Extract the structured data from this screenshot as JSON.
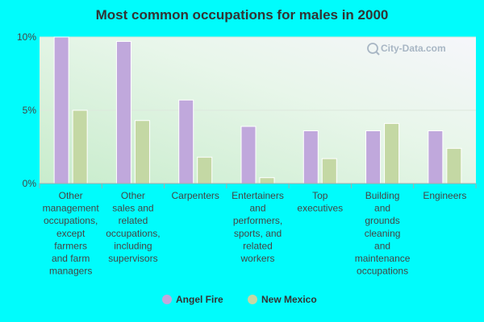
{
  "watermark": "City-Data.com",
  "colors": {
    "background": "#00fcfc",
    "series_a": "#c0a8dc",
    "series_b": "#c4d8a4",
    "grid": "#dde8dd",
    "axis": "#aaaaaa"
  },
  "chart_data": {
    "type": "bar",
    "title": "Most common occupations for males in 2000",
    "xlabel": "",
    "ylabel": "",
    "ylim": [
      0,
      10
    ],
    "yticks": [
      0,
      5,
      10
    ],
    "ytick_labels": [
      "0%",
      "5%",
      "10%"
    ],
    "categories": [
      [
        "Other",
        "management",
        "occupations,",
        "except",
        "farmers",
        "and farm",
        "managers"
      ],
      [
        "Other",
        "sales and",
        "related",
        "occupations,",
        "including",
        "supervisors"
      ],
      [
        "Carpenters"
      ],
      [
        "Entertainers",
        "and",
        "performers,",
        "sports, and",
        "related",
        "workers"
      ],
      [
        "Top",
        "executives"
      ],
      [
        "Building",
        "and",
        "grounds",
        "cleaning",
        "and",
        "maintenance",
        "occupations"
      ],
      [
        "Engineers"
      ]
    ],
    "series": [
      {
        "name": "Angel Fire",
        "values": [
          10.0,
          9.7,
          5.7,
          3.9,
          3.6,
          3.6,
          3.6
        ]
      },
      {
        "name": "New Mexico",
        "values": [
          5.0,
          4.3,
          1.8,
          0.4,
          1.7,
          4.1,
          2.4
        ]
      }
    ],
    "legend_position": "bottom-center"
  }
}
